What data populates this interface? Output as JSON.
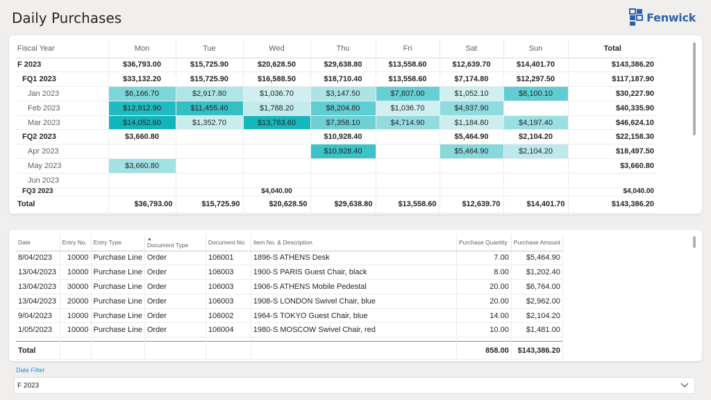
{
  "page": {
    "title": "Daily Purchases"
  },
  "logo": {
    "text": "Fenwick",
    "color": "#2c62ac"
  },
  "matrix": {
    "headers": [
      "Fiscal Year",
      "Mon",
      "Tue",
      "Wed",
      "Thu",
      "Fri",
      "Sat",
      "Sun",
      "Total"
    ],
    "rows": [
      {
        "level": 0,
        "label": "F 2023",
        "cells": [
          "$36,793.00",
          "$15,725.90",
          "$20,628.50",
          "$29,638.80",
          "$13,558.60",
          "$12,639.70",
          "$14,401.70"
        ],
        "total": "$143,386.20"
      },
      {
        "level": 1,
        "label": "FQ1 2023",
        "cells": [
          "$33,132.20",
          "$15,725.90",
          "$16,588.50",
          "$18,710.40",
          "$13,558.60",
          "$7,174.80",
          "$12,297.50"
        ],
        "total": "$117,187.90"
      },
      {
        "level": 2,
        "label": "Jan 2023",
        "cells": [
          "$6,166.70",
          "$2,917.80",
          "$1,036.70",
          "$3,147.50",
          "$7,807.00",
          "$1,052.10",
          "$8,100.10"
        ],
        "total": "$30,227.90"
      },
      {
        "level": 2,
        "label": "Feb 2023",
        "cells": [
          "$12,912.90",
          "$11,455.40",
          "$1,788.20",
          "$8,204.80",
          "$1,036.70",
          "$4,937.90",
          ""
        ],
        "total": "$40,335.90"
      },
      {
        "level": 2,
        "label": "Mar 2023",
        "cells": [
          "$14,052.60",
          "$1,352.70",
          "$13,763.60",
          "$7,358.10",
          "$4,714.90",
          "$1,184.80",
          "$4,197.40"
        ],
        "total": "$46,624.10"
      },
      {
        "level": 1,
        "label": "FQ2 2023",
        "cells": [
          "$3,660.80",
          "",
          "",
          "$10,928.40",
          "",
          "$5,464.90",
          "$2,104.20"
        ],
        "total": "$22,158.30"
      },
      {
        "level": 2,
        "label": "Apr 2023",
        "cells": [
          "",
          "",
          "",
          "$10,928.40",
          "",
          "$5,464.90",
          "$2,104.20"
        ],
        "total": "$18,497.50"
      },
      {
        "level": 2,
        "label": "May 2023",
        "cells": [
          "$3,660.80",
          "",
          "",
          "",
          "",
          "",
          ""
        ],
        "total": "$3,660.80"
      },
      {
        "level": 2,
        "label": "Jun 2023",
        "cells": [
          "",
          "",
          "",
          "",
          "",
          "",
          ""
        ],
        "total": ""
      },
      {
        "level": 1,
        "label": "FQ3 2023",
        "cells": [
          "",
          "",
          "$4,040.00",
          "",
          "",
          "",
          ""
        ],
        "total": "$4,040.00",
        "partial": true
      }
    ],
    "grand_total": {
      "label": "Total",
      "cells": [
        "$36,793.00",
        "$15,725.90",
        "$20,628.50",
        "$29,638.80",
        "$13,558.60",
        "$12,639.70",
        "$14,401.70"
      ],
      "total": "$143,386.20"
    },
    "heat_colors": {
      "min": "#e6f6f7",
      "max": "#12b5bc"
    }
  },
  "transactions": {
    "headers": [
      "Date",
      "Entry No.",
      "Entry Type",
      "Document Type",
      "Document No.",
      "Item No. & Description",
      "Purchase Quantity",
      "Purchase Amount"
    ],
    "sorted_column": "Document Type",
    "rows": [
      [
        "8/04/2023",
        "10000",
        "Purchase Line",
        "Order",
        "106001",
        "1896-S ATHENS Desk",
        "7.00",
        "$5,464.90"
      ],
      [
        "13/04/2023",
        "10000",
        "Purchase Line",
        "Order",
        "106003",
        "1900-S PARIS Guest Chair, black",
        "8.00",
        "$1,202.40"
      ],
      [
        "13/04/2023",
        "30000",
        "Purchase Line",
        "Order",
        "106003",
        "1906-S ATHENS Mobile Pedestal",
        "20.00",
        "$6,764.00"
      ],
      [
        "13/04/2023",
        "20000",
        "Purchase Line",
        "Order",
        "106003",
        "1908-S LONDON Swivel Chair, blue",
        "20.00",
        "$2,962.00"
      ],
      [
        "9/04/2023",
        "10000",
        "Purchase Line",
        "Order",
        "106002",
        "1964-S TOKYO Guest Chair, blue",
        "14.00",
        "$2,104.20"
      ],
      [
        "1/05/2023",
        "10000",
        "Purchase Line",
        "Order",
        "106004",
        "1980-S MOSCOW Swivel Chair, red",
        "10.00",
        "$1,481.00"
      ]
    ],
    "total": {
      "label": "Total",
      "quantity": "858.00",
      "amount": "$143,386.20"
    }
  },
  "slicer": {
    "label": "Date Filter",
    "value": "F 2023"
  }
}
